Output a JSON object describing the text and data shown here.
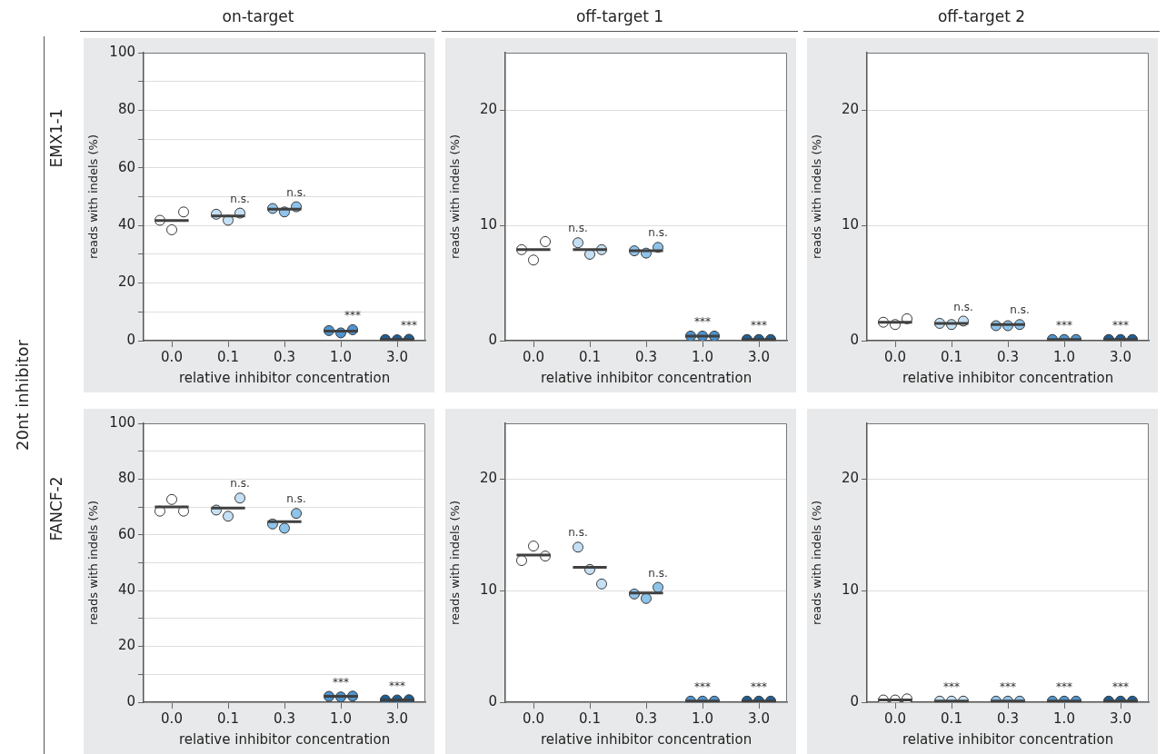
{
  "chart_data": [
    {
      "type": "scatter",
      "title": "on-target",
      "xlabel": "relative inhibitor concentration",
      "ylabel": "reads with indels (%)",
      "categories": [
        "0.0",
        "0.1",
        "0.3",
        "1.0",
        "3.0"
      ],
      "ylim": [
        0,
        100
      ],
      "yticks": [
        0,
        {
          "value": 10,
          "label": null
        },
        20,
        {
          "value": 30,
          "label": null
        },
        40,
        {
          "value": 50,
          "label": null
        },
        60,
        {
          "value": 70,
          "label": null
        },
        80,
        {
          "value": 90,
          "label": null
        },
        100
      ],
      "grid": "y",
      "marker": "circle",
      "series": [
        {
          "type": "box",
          "color": "#404040",
          "boxes": [
            {
              "low": 41.7,
              "q1": 41.7,
              "median": 41.7,
              "q3": 41.7,
              "high": 41.7
            },
            {
              "low": 43.3,
              "q1": 43.3,
              "median": 43.3,
              "q3": 43.3,
              "high": 43.3
            },
            {
              "low": 45.7,
              "q1": 45.7,
              "median": 45.7,
              "q3": 45.7,
              "high": 45.7
            },
            {
              "low": 3.3,
              "q1": 3.3,
              "median": 3.3,
              "q3": 3.3,
              "high": 3.3
            },
            {
              "low": 0.4,
              "q1": 0.4,
              "median": 0.4,
              "q3": 0.4,
              "high": 0.4
            }
          ]
        },
        {
          "x": [
            "0.0",
            "0.1",
            "0.3",
            "1.0",
            "3.0"
          ],
          "values": [
            41.8,
            43.9,
            45.9,
            3.5,
            0.4
          ],
          "colors": [
            "#ffffff",
            "#c5e0f4",
            "#8ec3ea",
            "#4d94d0",
            "#1f5e93"
          ]
        },
        {
          "x": [
            "0.0",
            "0.1",
            "0.3",
            "1.0",
            "3.0"
          ],
          "values": [
            38.5,
            41.8,
            44.7,
            2.7,
            0.3
          ],
          "colors": [
            "#ffffff",
            "#c5e0f4",
            "#8ec3ea",
            "#4d94d0",
            "#1f5e93"
          ]
        },
        {
          "x": [
            "0.0",
            "0.1",
            "0.3",
            "1.0",
            "3.0"
          ],
          "values": [
            44.7,
            44.3,
            46.5,
            3.8,
            0.5
          ],
          "colors": [
            "#ffffff",
            "#c5e0f4",
            "#8ec3ea",
            "#4d94d0",
            "#1f5e93"
          ],
          "value_labels": [
            null,
            "n.s.",
            "n.s.",
            "***",
            "***"
          ]
        }
      ],
      "annotations": [
        "EMX1-1",
        "20nt inhibitor"
      ]
    },
    {
      "type": "scatter",
      "title": "off-target 1",
      "xlabel": "relative inhibitor concentration",
      "ylabel": "reads with indels (%)",
      "categories": [
        "0.0",
        "0.1",
        "0.3",
        "1.0",
        "3.0"
      ],
      "ylim": [
        0,
        25
      ],
      "yticks": [
        0,
        10,
        20
      ],
      "grid": "y",
      "marker": "circle",
      "series": [
        {
          "type": "box",
          "color": "#404040",
          "boxes": [
            {
              "low": 7.9,
              "q1": 7.9,
              "median": 7.9,
              "q3": 7.9,
              "high": 7.9
            },
            {
              "low": 7.9,
              "q1": 7.9,
              "median": 7.9,
              "q3": 7.9,
              "high": 7.9
            },
            {
              "low": 7.8,
              "q1": 7.8,
              "median": 7.8,
              "q3": 7.8,
              "high": 7.8
            },
            {
              "low": 0.4,
              "q1": 0.4,
              "median": 0.4,
              "q3": 0.4,
              "high": 0.4
            },
            {
              "low": 0.1,
              "q1": 0.1,
              "median": 0.1,
              "q3": 0.1,
              "high": 0.1
            }
          ]
        },
        {
          "x": [
            "0.0",
            "0.1",
            "0.3",
            "1.0",
            "3.0"
          ],
          "values": [
            7.9,
            8.5,
            7.8,
            0.4,
            0.1
          ],
          "colors": [
            "#ffffff",
            "#c5e0f4",
            "#8ec3ea",
            "#4d94d0",
            "#1f5e93"
          ],
          "value_labels": [
            null,
            "n.s.",
            null,
            null,
            null
          ]
        },
        {
          "x": [
            "0.0",
            "0.1",
            "0.3",
            "1.0",
            "3.0"
          ],
          "values": [
            7.0,
            7.5,
            7.6,
            0.4,
            0.1
          ],
          "colors": [
            "#ffffff",
            "#c5e0f4",
            "#8ec3ea",
            "#4d94d0",
            "#1f5e93"
          ],
          "value_labels": [
            null,
            null,
            null,
            "***",
            "***"
          ]
        },
        {
          "x": [
            "0.0",
            "0.1",
            "0.3",
            "1.0",
            "3.0"
          ],
          "values": [
            8.6,
            7.9,
            8.1,
            0.4,
            0.1
          ],
          "colors": [
            "#ffffff",
            "#c5e0f4",
            "#8ec3ea",
            "#4d94d0",
            "#1f5e93"
          ],
          "value_labels": [
            null,
            null,
            "n.s.",
            null,
            null
          ]
        }
      ]
    },
    {
      "type": "scatter",
      "title": "off-target 2",
      "xlabel": "relative inhibitor concentration",
      "ylabel": "reads with indels (%)",
      "categories": [
        "0.0",
        "0.1",
        "0.3",
        "1.0",
        "3.0"
      ],
      "ylim": [
        0,
        25
      ],
      "yticks": [
        0,
        10,
        20
      ],
      "grid": "y",
      "marker": "circle",
      "series": [
        {
          "type": "box",
          "color": "#404040",
          "boxes": [
            {
              "low": 1.6,
              "q1": 1.6,
              "median": 1.6,
              "q3": 1.6,
              "high": 1.6
            },
            {
              "low": 1.5,
              "q1": 1.5,
              "median": 1.5,
              "q3": 1.5,
              "high": 1.5
            },
            {
              "low": 1.4,
              "q1": 1.4,
              "median": 1.4,
              "q3": 1.4,
              "high": 1.4
            },
            {
              "low": 0.1,
              "q1": 0.1,
              "median": 0.1,
              "q3": 0.1,
              "high": 0.1
            },
            {
              "low": 0.1,
              "q1": 0.1,
              "median": 0.1,
              "q3": 0.1,
              "high": 0.1
            }
          ]
        },
        {
          "x": [
            "0.0",
            "0.1",
            "0.3",
            "1.0",
            "3.0"
          ],
          "values": [
            1.6,
            1.5,
            1.3,
            0.1,
            0.1
          ],
          "colors": [
            "#ffffff",
            "#c5e0f4",
            "#8ec3ea",
            "#4d94d0",
            "#1f5e93"
          ]
        },
        {
          "x": [
            "0.0",
            "0.1",
            "0.3",
            "1.0",
            "3.0"
          ],
          "values": [
            1.4,
            1.4,
            1.3,
            0.1,
            0.1
          ],
          "colors": [
            "#ffffff",
            "#c5e0f4",
            "#8ec3ea",
            "#4d94d0",
            "#1f5e93"
          ],
          "value_labels": [
            null,
            null,
            null,
            "***",
            "***"
          ]
        },
        {
          "x": [
            "0.0",
            "0.1",
            "0.3",
            "1.0",
            "3.0"
          ],
          "values": [
            1.9,
            1.7,
            1.4,
            0.1,
            0.1
          ],
          "colors": [
            "#ffffff",
            "#c5e0f4",
            "#8ec3ea",
            "#4d94d0",
            "#1f5e93"
          ],
          "value_labels": [
            null,
            "n.s.",
            "n.s.",
            null,
            null
          ]
        }
      ]
    },
    {
      "type": "scatter",
      "xlabel": "relative inhibitor concentration",
      "ylabel": "reads with indels (%)",
      "categories": [
        "0.0",
        "0.1",
        "0.3",
        "1.0",
        "3.0"
      ],
      "ylim": [
        0,
        100
      ],
      "yticks": [
        0,
        {
          "value": 10,
          "label": null
        },
        20,
        {
          "value": 30,
          "label": null
        },
        40,
        {
          "value": 50,
          "label": null
        },
        60,
        {
          "value": 70,
          "label": null
        },
        80,
        {
          "value": 90,
          "label": null
        },
        100
      ],
      "grid": "y",
      "marker": "circle",
      "series": [
        {
          "type": "box",
          "color": "#404040",
          "boxes": [
            {
              "low": 70.0,
              "q1": 70.0,
              "median": 70.0,
              "q3": 70.0,
              "high": 70.0
            },
            {
              "low": 69.6,
              "q1": 69.6,
              "median": 69.6,
              "q3": 69.6,
              "high": 69.6
            },
            {
              "low": 64.7,
              "q1": 64.7,
              "median": 64.7,
              "q3": 64.7,
              "high": 64.7
            },
            {
              "low": 2.1,
              "q1": 2.1,
              "median": 2.1,
              "q3": 2.1,
              "high": 2.1
            },
            {
              "low": 0.8,
              "q1": 0.8,
              "median": 0.8,
              "q3": 0.8,
              "high": 0.8
            }
          ]
        },
        {
          "x": [
            "0.0",
            "0.1",
            "0.3",
            "1.0",
            "3.0"
          ],
          "values": [
            68.5,
            68.9,
            63.9,
            2.1,
            0.8
          ],
          "colors": [
            "#ffffff",
            "#c5e0f4",
            "#8ec3ea",
            "#4d94d0",
            "#1f5e93"
          ]
        },
        {
          "x": [
            "0.0",
            "0.1",
            "0.3",
            "1.0",
            "3.0"
          ],
          "values": [
            72.7,
            66.7,
            62.4,
            1.9,
            0.8
          ],
          "colors": [
            "#ffffff",
            "#c5e0f4",
            "#8ec3ea",
            "#4d94d0",
            "#1f5e93"
          ],
          "value_labels": [
            null,
            null,
            null,
            "***",
            "***"
          ]
        },
        {
          "x": [
            "0.0",
            "0.1",
            "0.3",
            "1.0",
            "3.0"
          ],
          "values": [
            68.5,
            73.2,
            67.7,
            2.2,
            0.9
          ],
          "colors": [
            "#ffffff",
            "#c5e0f4",
            "#8ec3ea",
            "#4d94d0",
            "#1f5e93"
          ],
          "value_labels": [
            null,
            "n.s.",
            "n.s.",
            null,
            null
          ]
        }
      ],
      "annotations": [
        "FANCF-2"
      ]
    },
    {
      "type": "scatter",
      "xlabel": "relative inhibitor concentration",
      "ylabel": "reads with indels (%)",
      "categories": [
        "0.0",
        "0.1",
        "0.3",
        "1.0",
        "3.0"
      ],
      "ylim": [
        0,
        25
      ],
      "yticks": [
        0,
        10,
        20
      ],
      "grid": "y",
      "marker": "circle",
      "series": [
        {
          "type": "box",
          "color": "#404040",
          "boxes": [
            {
              "low": 13.2,
              "q1": 13.2,
              "median": 13.2,
              "q3": 13.2,
              "high": 13.2
            },
            {
              "low": 12.1,
              "q1": 12.1,
              "median": 12.1,
              "q3": 12.1,
              "high": 12.1
            },
            {
              "low": 9.8,
              "q1": 9.8,
              "median": 9.8,
              "q3": 9.8,
              "high": 9.8
            },
            {
              "low": 0.1,
              "q1": 0.1,
              "median": 0.1,
              "q3": 0.1,
              "high": 0.1
            },
            {
              "low": 0.1,
              "q1": 0.1,
              "median": 0.1,
              "q3": 0.1,
              "high": 0.1
            }
          ]
        },
        {
          "x": [
            "0.0",
            "0.1",
            "0.3",
            "1.0",
            "3.0"
          ],
          "values": [
            12.7,
            13.9,
            9.7,
            0.1,
            0.1
          ],
          "colors": [
            "#ffffff",
            "#c5e0f4",
            "#8ec3ea",
            "#4d94d0",
            "#1f5e93"
          ],
          "value_labels": [
            null,
            "n.s.",
            null,
            null,
            null
          ]
        },
        {
          "x": [
            "0.0",
            "0.1",
            "0.3",
            "1.0",
            "3.0"
          ],
          "values": [
            14.0,
            11.9,
            9.3,
            0.1,
            0.1
          ],
          "colors": [
            "#ffffff",
            "#c5e0f4",
            "#8ec3ea",
            "#4d94d0",
            "#1f5e93"
          ],
          "value_labels": [
            null,
            null,
            null,
            "***",
            "***"
          ]
        },
        {
          "x": [
            "0.0",
            "0.1",
            "0.3",
            "1.0",
            "3.0"
          ],
          "values": [
            13.1,
            10.6,
            10.3,
            0.1,
            0.1
          ],
          "colors": [
            "#ffffff",
            "#c5e0f4",
            "#8ec3ea",
            "#4d94d0",
            "#1f5e93"
          ],
          "value_labels": [
            null,
            null,
            "n.s.",
            null,
            null
          ]
        }
      ]
    },
    {
      "type": "scatter",
      "xlabel": "relative inhibitor concentration",
      "ylabel": "reads with indels (%)",
      "categories": [
        "0.0",
        "0.1",
        "0.3",
        "1.0",
        "3.0"
      ],
      "ylim": [
        0,
        25
      ],
      "yticks": [
        0,
        10,
        20
      ],
      "grid": "y",
      "marker": "circle",
      "series": [
        {
          "type": "box",
          "color": "#404040",
          "boxes": [
            {
              "low": 0.2,
              "q1": 0.2,
              "median": 0.2,
              "q3": 0.2,
              "high": 0.2
            },
            {
              "low": 0.1,
              "q1": 0.1,
              "median": 0.1,
              "q3": 0.1,
              "high": 0.1
            },
            {
              "low": 0.1,
              "q1": 0.1,
              "median": 0.1,
              "q3": 0.1,
              "high": 0.1
            },
            {
              "low": 0.1,
              "q1": 0.1,
              "median": 0.1,
              "q3": 0.1,
              "high": 0.1
            },
            {
              "low": 0.1,
              "q1": 0.1,
              "median": 0.1,
              "q3": 0.1,
              "high": 0.1
            }
          ]
        },
        {
          "x": [
            "0.0",
            "0.1",
            "0.3",
            "1.0",
            "3.0"
          ],
          "values": [
            0.2,
            0.1,
            0.1,
            0.1,
            0.1
          ],
          "colors": [
            "#ffffff",
            "#c5e0f4",
            "#8ec3ea",
            "#4d94d0",
            "#1f5e93"
          ]
        },
        {
          "x": [
            "0.0",
            "0.1",
            "0.3",
            "1.0",
            "3.0"
          ],
          "values": [
            0.2,
            0.1,
            0.1,
            0.1,
            0.1
          ],
          "colors": [
            "#ffffff",
            "#c5e0f4",
            "#8ec3ea",
            "#4d94d0",
            "#1f5e93"
          ],
          "value_labels": [
            null,
            "***",
            "***",
            "***",
            "***"
          ]
        },
        {
          "x": [
            "0.0",
            "0.1",
            "0.3",
            "1.0",
            "3.0"
          ],
          "values": [
            0.3,
            0.1,
            0.1,
            0.1,
            0.1
          ],
          "colors": [
            "#ffffff",
            "#c5e0f4",
            "#8ec3ea",
            "#4d94d0",
            "#1f5e93"
          ]
        }
      ]
    }
  ]
}
